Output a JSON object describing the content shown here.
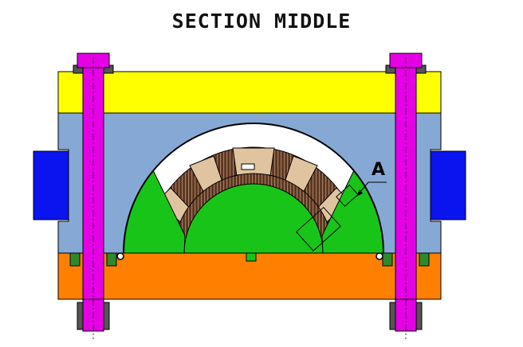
{
  "title": "SECTION MIDDLE",
  "callout_label": "A",
  "colors": {
    "top_plate": "#ffff00",
    "collar": "#86a8d4",
    "bottom_plate": "#ff8000",
    "pole": "#19c419",
    "bolt": "#e600e6",
    "side_block": "#0a14ee",
    "coil_light": "#e0c4a0",
    "coil_dark": "#5a3522",
    "shim": "#2c8a2c",
    "outline": "#000000"
  },
  "icons": {
    "left_bolt": "bolt-icon",
    "right_bolt": "bolt-icon",
    "left_block": "key-block-icon",
    "right_block": "key-block-icon"
  }
}
